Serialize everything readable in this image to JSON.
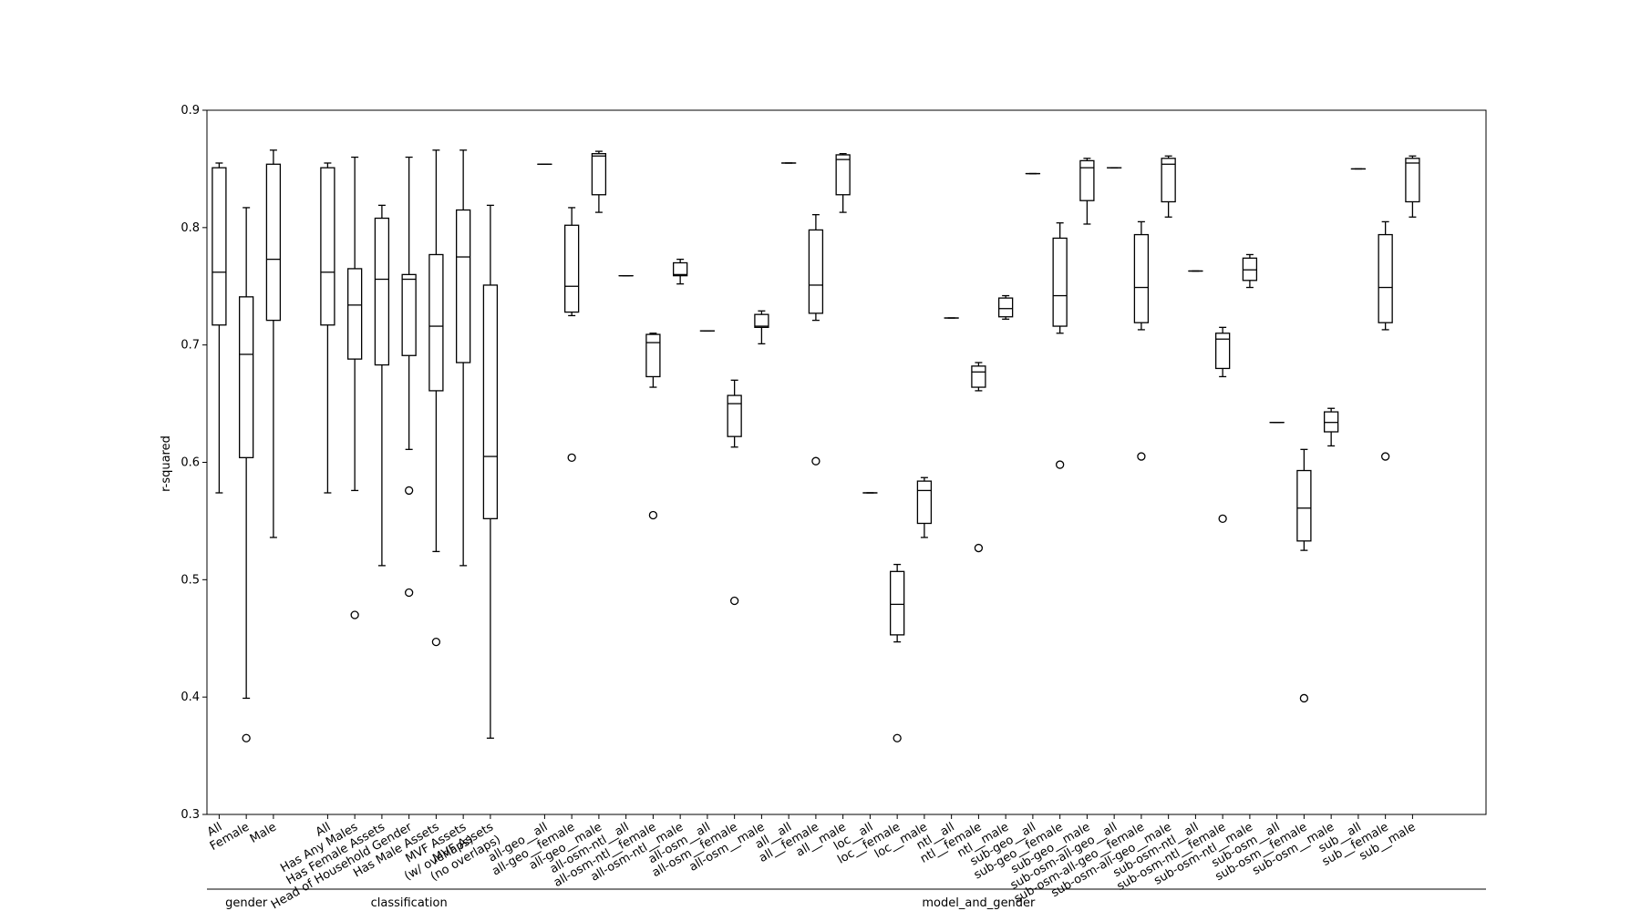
{
  "chart_data": {
    "type": "box",
    "ylabel": "r-squared",
    "ylim": [
      0.3,
      0.9
    ],
    "yticks": [
      0.3,
      0.4,
      0.5,
      0.6,
      0.7,
      0.8,
      0.9
    ],
    "ytick_labels": [
      "0.3",
      "0.4",
      "0.5",
      "0.6",
      "0.7",
      "0.8",
      "0.9"
    ],
    "grid": false,
    "groups": [
      {
        "label": "gender",
        "boxes": [
          {
            "name": "All",
            "whislo": 0.574,
            "q1": 0.717,
            "med": 0.762,
            "q3": 0.851,
            "whishi": 0.855,
            "fliers": []
          },
          {
            "name": "Female",
            "whislo": 0.399,
            "q1": 0.604,
            "med": 0.692,
            "q3": 0.741,
            "whishi": 0.817,
            "fliers": [
              0.365
            ]
          },
          {
            "name": "Male",
            "whislo": 0.536,
            "q1": 0.721,
            "med": 0.773,
            "q3": 0.854,
            "whishi": 0.866,
            "fliers": []
          }
        ]
      },
      {
        "label": "classification",
        "boxes": [
          {
            "name": "All",
            "whislo": 0.574,
            "q1": 0.717,
            "med": 0.762,
            "q3": 0.851,
            "whishi": 0.855,
            "fliers": []
          },
          {
            "name": "Has Any Males",
            "whislo": 0.576,
            "q1": 0.688,
            "med": 0.734,
            "q3": 0.765,
            "whishi": 0.86,
            "fliers": [
              0.47
            ]
          },
          {
            "name": "Has Female Assets",
            "whislo": 0.512,
            "q1": 0.683,
            "med": 0.756,
            "q3": 0.808,
            "whishi": 0.819,
            "fliers": []
          },
          {
            "name": "Head of Household Gender",
            "whislo": 0.611,
            "q1": 0.691,
            "med": 0.756,
            "q3": 0.76,
            "whishi": 0.86,
            "fliers": [
              0.576,
              0.489
            ]
          },
          {
            "name": "Has Male Assets",
            "whislo": 0.524,
            "q1": 0.661,
            "med": 0.716,
            "q3": 0.777,
            "whishi": 0.866,
            "fliers": [
              0.447
            ]
          },
          {
            "name": "MVF Assets\n(w/ overlaps)",
            "whislo": 0.512,
            "q1": 0.685,
            "med": 0.775,
            "q3": 0.815,
            "whishi": 0.866,
            "fliers": []
          },
          {
            "name": "MVF Assets\n(no overlaps)",
            "whislo": 0.365,
            "q1": 0.552,
            "med": 0.605,
            "q3": 0.751,
            "whishi": 0.819,
            "fliers": []
          }
        ]
      },
      {
        "label": "model_and_gender",
        "boxes": [
          {
            "name": "all-geo__all",
            "whislo": 0.854,
            "q1": 0.854,
            "med": 0.854,
            "q3": 0.854,
            "whishi": 0.854,
            "fliers": []
          },
          {
            "name": "all-geo__female",
            "whislo": 0.725,
            "q1": 0.728,
            "med": 0.75,
            "q3": 0.802,
            "whishi": 0.817,
            "fliers": [
              0.604
            ]
          },
          {
            "name": "all-geo__male",
            "whislo": 0.813,
            "q1": 0.828,
            "med": 0.861,
            "q3": 0.863,
            "whishi": 0.865,
            "fliers": []
          },
          {
            "name": "all-osm-ntl__all",
            "whislo": 0.759,
            "q1": 0.759,
            "med": 0.759,
            "q3": 0.759,
            "whishi": 0.759,
            "fliers": []
          },
          {
            "name": "all-osm-ntl__female",
            "whislo": 0.664,
            "q1": 0.673,
            "med": 0.702,
            "q3": 0.709,
            "whishi": 0.71,
            "fliers": [
              0.555
            ]
          },
          {
            "name": "all-osm-ntl__male",
            "whislo": 0.752,
            "q1": 0.759,
            "med": 0.76,
            "q3": 0.77,
            "whishi": 0.773,
            "fliers": []
          },
          {
            "name": "all-osm__all",
            "whislo": 0.712,
            "q1": 0.712,
            "med": 0.712,
            "q3": 0.712,
            "whishi": 0.712,
            "fliers": []
          },
          {
            "name": "all-osm__female",
            "whislo": 0.613,
            "q1": 0.622,
            "med": 0.65,
            "q3": 0.657,
            "whishi": 0.67,
            "fliers": [
              0.482
            ]
          },
          {
            "name": "all-osm__male",
            "whislo": 0.701,
            "q1": 0.715,
            "med": 0.716,
            "q3": 0.726,
            "whishi": 0.729,
            "fliers": []
          },
          {
            "name": "all__all",
            "whislo": 0.855,
            "q1": 0.855,
            "med": 0.855,
            "q3": 0.855,
            "whishi": 0.855,
            "fliers": []
          },
          {
            "name": "all__female",
            "whislo": 0.721,
            "q1": 0.727,
            "med": 0.751,
            "q3": 0.798,
            "whishi": 0.811,
            "fliers": [
              0.601
            ]
          },
          {
            "name": "all__male",
            "whislo": 0.813,
            "q1": 0.828,
            "med": 0.858,
            "q3": 0.862,
            "whishi": 0.863,
            "fliers": []
          },
          {
            "name": "loc__all",
            "whislo": 0.574,
            "q1": 0.574,
            "med": 0.574,
            "q3": 0.574,
            "whishi": 0.574,
            "fliers": []
          },
          {
            "name": "loc__female",
            "whislo": 0.447,
            "q1": 0.453,
            "med": 0.479,
            "q3": 0.507,
            "whishi": 0.513,
            "fliers": [
              0.365
            ]
          },
          {
            "name": "loc__male",
            "whislo": 0.536,
            "q1": 0.548,
            "med": 0.576,
            "q3": 0.584,
            "whishi": 0.587,
            "fliers": []
          },
          {
            "name": "ntl__all",
            "whislo": 0.723,
            "q1": 0.723,
            "med": 0.723,
            "q3": 0.723,
            "whishi": 0.723,
            "fliers": []
          },
          {
            "name": "ntl__female",
            "whislo": 0.661,
            "q1": 0.664,
            "med": 0.677,
            "q3": 0.682,
            "whishi": 0.685,
            "fliers": [
              0.527
            ]
          },
          {
            "name": "ntl__male",
            "whislo": 0.722,
            "q1": 0.724,
            "med": 0.731,
            "q3": 0.74,
            "whishi": 0.742,
            "fliers": []
          },
          {
            "name": "sub-geo__all",
            "whislo": 0.846,
            "q1": 0.846,
            "med": 0.846,
            "q3": 0.846,
            "whishi": 0.846,
            "fliers": []
          },
          {
            "name": "sub-geo__female",
            "whislo": 0.71,
            "q1": 0.716,
            "med": 0.742,
            "q3": 0.791,
            "whishi": 0.804,
            "fliers": [
              0.598
            ]
          },
          {
            "name": "sub-geo__male",
            "whislo": 0.803,
            "q1": 0.823,
            "med": 0.851,
            "q3": 0.857,
            "whishi": 0.859,
            "fliers": []
          },
          {
            "name": "sub-osm-all-geo__all",
            "whislo": 0.851,
            "q1": 0.851,
            "med": 0.851,
            "q3": 0.851,
            "whishi": 0.851,
            "fliers": []
          },
          {
            "name": "sub-osm-all-geo__female",
            "whislo": 0.713,
            "q1": 0.719,
            "med": 0.749,
            "q3": 0.794,
            "whishi": 0.805,
            "fliers": [
              0.605
            ]
          },
          {
            "name": "sub-osm-all-geo__male",
            "whislo": 0.809,
            "q1": 0.822,
            "med": 0.854,
            "q3": 0.859,
            "whishi": 0.861,
            "fliers": []
          },
          {
            "name": "sub-osm-ntl__all",
            "whislo": 0.763,
            "q1": 0.763,
            "med": 0.763,
            "q3": 0.763,
            "whishi": 0.763,
            "fliers": []
          },
          {
            "name": "sub-osm-ntl__female",
            "whislo": 0.673,
            "q1": 0.68,
            "med": 0.705,
            "q3": 0.71,
            "whishi": 0.715,
            "fliers": [
              0.552
            ]
          },
          {
            "name": "sub-osm-ntl__male",
            "whislo": 0.749,
            "q1": 0.755,
            "med": 0.764,
            "q3": 0.774,
            "whishi": 0.777,
            "fliers": []
          },
          {
            "name": "sub-osm__all",
            "whislo": 0.634,
            "q1": 0.634,
            "med": 0.634,
            "q3": 0.634,
            "whishi": 0.634,
            "fliers": []
          },
          {
            "name": "sub-osm__female",
            "whislo": 0.525,
            "q1": 0.533,
            "med": 0.561,
            "q3": 0.593,
            "whishi": 0.611,
            "fliers": [
              0.399
            ]
          },
          {
            "name": "sub-osm__male",
            "whislo": 0.614,
            "q1": 0.626,
            "med": 0.634,
            "q3": 0.643,
            "whishi": 0.646,
            "fliers": []
          },
          {
            "name": "sub__all",
            "whislo": 0.85,
            "q1": 0.85,
            "med": 0.85,
            "q3": 0.85,
            "whishi": 0.85,
            "fliers": []
          },
          {
            "name": "sub__female",
            "whislo": 0.713,
            "q1": 0.719,
            "med": 0.749,
            "q3": 0.794,
            "whishi": 0.805,
            "fliers": [
              0.605
            ]
          },
          {
            "name": "sub__male",
            "whislo": 0.809,
            "q1": 0.822,
            "med": 0.855,
            "q3": 0.859,
            "whishi": 0.861,
            "fliers": []
          }
        ]
      }
    ]
  }
}
